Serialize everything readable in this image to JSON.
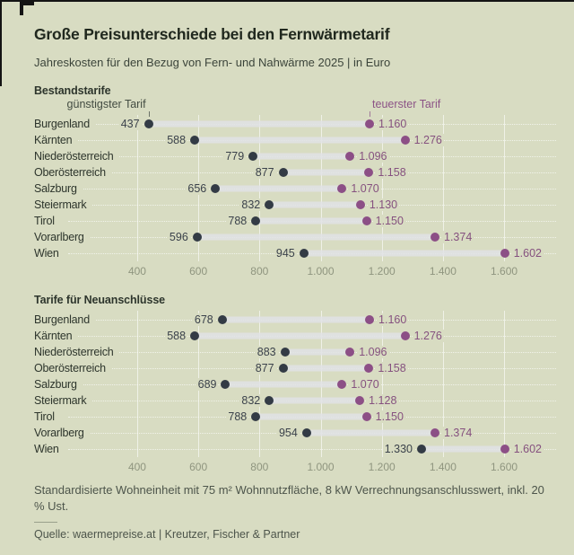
{
  "header": {
    "title": "Große Preisunterschiede bei den Fernwärmetarif",
    "subtitle": "Jahreskosten für den Bezug von Fern- und Nahwärme 2025 | in Euro"
  },
  "annotations": {
    "min_label": "günstigster Tarif",
    "max_label": "teuerster Tarif"
  },
  "colors": {
    "background": "#d8dcc2",
    "min_dot": "#333b45",
    "max_dot": "#8c4f86",
    "min_value_text": "#3b424b",
    "max_value_text": "#85517f",
    "connector": "#e1e2e5",
    "axis_text": "#8f957f",
    "annotation_min_text": "#434c42",
    "annotation_max_text": "#8c5386"
  },
  "chart_data": [
    {
      "type": "dumbbell",
      "title": "Bestandstarife",
      "categories": [
        "Burgenland",
        "Kärnten",
        "Niederösterreich",
        "Oberösterreich",
        "Salzburg",
        "Steiermark",
        "Tirol",
        "Vorarlberg",
        "Wien"
      ],
      "series": [
        {
          "name": "günstigster Tarif",
          "values": [
            437,
            588,
            779,
            877,
            656,
            832,
            788,
            596,
            945
          ]
        },
        {
          "name": "teuerster Tarif",
          "values": [
            1160,
            1276,
            1096,
            1158,
            1070,
            1130,
            1150,
            1374,
            1602
          ]
        }
      ],
      "xlim": [
        274,
        1770
      ],
      "ticks": [
        400,
        600,
        800,
        1000,
        1200,
        1400,
        1600
      ],
      "grid": "vertical",
      "legend_position": "above-first-row"
    },
    {
      "type": "dumbbell",
      "title": "Tarife für Neuanschlüsse",
      "categories": [
        "Burgenland",
        "Kärnten",
        "Niederösterreich",
        "Oberösterreich",
        "Salzburg",
        "Steiermark",
        "Tirol",
        "Vorarlberg",
        "Wien"
      ],
      "series": [
        {
          "name": "günstigster Tarif",
          "values": [
            678,
            588,
            883,
            877,
            689,
            832,
            788,
            954,
            1330
          ]
        },
        {
          "name": "teuerster Tarif",
          "values": [
            1160,
            1276,
            1096,
            1158,
            1070,
            1128,
            1150,
            1374,
            1602
          ]
        }
      ],
      "xlim": [
        274,
        1770
      ],
      "ticks": [
        400,
        600,
        800,
        1000,
        1200,
        1400,
        1600
      ],
      "grid": "vertical",
      "legend_position": "none"
    }
  ],
  "footer": {
    "note": "Standardisierte Wohneinheit mit 75 m² Wohnnutzfläche, 8 kW Verrechnungsanschlusswert, inkl. 20 % Ust.",
    "source": "Quelle: waermepreise.at | Kreutzer, Fischer & Partner"
  }
}
